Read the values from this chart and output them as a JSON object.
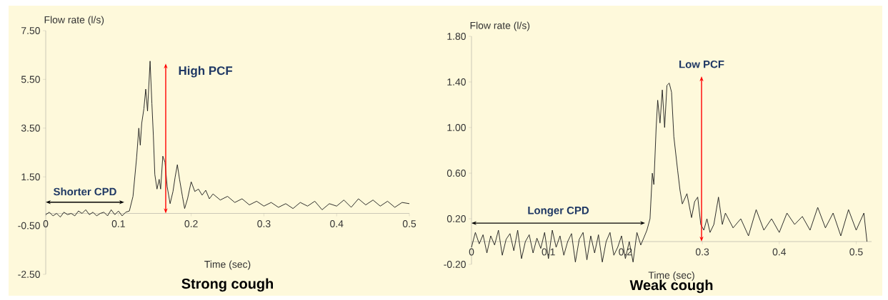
{
  "chart_data": [
    {
      "type": "line",
      "title": "Strong cough",
      "xlabel": "Time (sec)",
      "ylabel": "Flow rate (l/s)",
      "x": [
        0,
        0.005,
        0.01,
        0.015,
        0.02,
        0.025,
        0.03,
        0.035,
        0.04,
        0.045,
        0.05,
        0.055,
        0.06,
        0.065,
        0.07,
        0.075,
        0.08,
        0.085,
        0.09,
        0.095,
        0.1,
        0.105,
        0.11,
        0.115,
        0.12,
        0.125,
        0.128,
        0.13,
        0.132,
        0.135,
        0.1375,
        0.14,
        0.1435,
        0.146,
        0.148,
        0.15,
        0.153,
        0.156,
        0.158,
        0.161,
        0.164,
        0.167,
        0.171,
        0.175,
        0.178,
        0.181,
        0.184,
        0.188,
        0.191,
        0.195,
        0.2,
        0.205,
        0.21,
        0.215,
        0.22,
        0.225,
        0.23,
        0.24,
        0.25,
        0.26,
        0.27,
        0.28,
        0.29,
        0.3,
        0.31,
        0.32,
        0.33,
        0.34,
        0.35,
        0.36,
        0.37,
        0.38,
        0.39,
        0.4,
        0.41,
        0.42,
        0.43,
        0.44,
        0.45,
        0.46,
        0.47,
        0.48,
        0.49,
        0.5
      ],
      "series": [
        {
          "color": "#1a1a1a",
          "values": [
            -0.05,
            0.05,
            -0.1,
            0.0,
            -0.15,
            0.05,
            -0.05,
            0.0,
            -0.1,
            0.1,
            0.0,
            0.15,
            -0.05,
            0.05,
            -0.1,
            0.0,
            0.05,
            -0.1,
            0.15,
            -0.05,
            0.1,
            -0.1,
            0.05,
            0.1,
            0.7,
            2.3,
            3.5,
            2.8,
            3.7,
            4.3,
            5.1,
            4.2,
            6.25,
            4.5,
            3.2,
            1.6,
            1.0,
            1.4,
            1.0,
            2.35,
            2.1,
            1.1,
            0.4,
            0.9,
            1.5,
            2.0,
            1.4,
            0.7,
            0.2,
            0.6,
            1.3,
            0.9,
            1.0,
            0.75,
            0.95,
            0.6,
            0.8,
            0.55,
            0.7,
            0.45,
            0.6,
            0.35,
            0.5,
            0.3,
            0.45,
            0.25,
            0.4,
            0.2,
            0.45,
            0.3,
            0.5,
            0.15,
            0.4,
            0.3,
            0.55,
            0.25,
            0.6,
            0.35,
            0.55,
            0.3,
            0.5,
            0.25,
            0.45,
            0.4
          ]
        }
      ],
      "xlim": [
        0,
        0.5
      ],
      "ylim": [
        -2.5,
        7.5
      ],
      "xticks": [
        0,
        0.1,
        0.2,
        0.3,
        0.4,
        0.5
      ],
      "yticks": [
        {
          "value": -2.5,
          "label": "-2.50"
        },
        {
          "value": -0.5,
          "label": "-0.50"
        },
        {
          "value": 1.5,
          "label": "1.50"
        },
        {
          "value": 3.5,
          "label": "3.50"
        },
        {
          "value": 5.5,
          "label": "5.50"
        },
        {
          "value": 7.5,
          "label": "7.50"
        }
      ],
      "annotations": [
        "Shorter CPD",
        "High PCF"
      ]
    },
    {
      "type": "line",
      "title": "Weak cough",
      "xlabel": "Time (sec)",
      "ylabel": "Flow rate (l/s)",
      "x": [
        0,
        0.005,
        0.01,
        0.015,
        0.02,
        0.025,
        0.03,
        0.035,
        0.04,
        0.045,
        0.05,
        0.055,
        0.06,
        0.065,
        0.07,
        0.075,
        0.08,
        0.085,
        0.09,
        0.095,
        0.1,
        0.105,
        0.11,
        0.115,
        0.12,
        0.125,
        0.13,
        0.135,
        0.14,
        0.145,
        0.15,
        0.155,
        0.16,
        0.165,
        0.17,
        0.175,
        0.18,
        0.185,
        0.19,
        0.195,
        0.2,
        0.205,
        0.21,
        0.215,
        0.22,
        0.225,
        0.228,
        0.232,
        0.235,
        0.237,
        0.24,
        0.242,
        0.245,
        0.248,
        0.251,
        0.254,
        0.257,
        0.26,
        0.263,
        0.268,
        0.271,
        0.274,
        0.28,
        0.286,
        0.29,
        0.294,
        0.298,
        0.302,
        0.306,
        0.31,
        0.315,
        0.321,
        0.326,
        0.33,
        0.34,
        0.35,
        0.36,
        0.37,
        0.38,
        0.39,
        0.4,
        0.41,
        0.42,
        0.43,
        0.44,
        0.45,
        0.46,
        0.47,
        0.48,
        0.49,
        0.5,
        0.51,
        0.514
      ],
      "series": [
        {
          "color": "#1a1a1a",
          "values": [
            -0.05,
            0.08,
            -0.02,
            0.06,
            -0.1,
            0.05,
            -0.03,
            0.1,
            -0.12,
            0.02,
            0.07,
            -0.08,
            0.1,
            -0.15,
            0.0,
            0.06,
            -0.1,
            0.03,
            -0.06,
            0.08,
            -0.15,
            0.1,
            -0.05,
            0.05,
            -0.12,
            0.0,
            0.07,
            -0.18,
            0.02,
            0.08,
            -0.16,
            0.05,
            -0.1,
            0.06,
            -0.18,
            0.0,
            0.08,
            -0.12,
            -0.05,
            0.05,
            -0.15,
            0.0,
            -0.18,
            0.08,
            -0.03,
            0.05,
            0.1,
            0.2,
            0.6,
            0.5,
            1.0,
            1.24,
            1.04,
            1.33,
            1.0,
            1.37,
            1.39,
            1.31,
            0.92,
            0.62,
            0.45,
            0.33,
            0.42,
            0.21,
            0.35,
            0.39,
            0.15,
            0.1,
            0.2,
            0.08,
            0.15,
            0.39,
            0.15,
            0.25,
            0.12,
            0.2,
            0.05,
            0.28,
            0.1,
            0.2,
            0.08,
            0.25,
            0.15,
            0.22,
            0.1,
            0.3,
            0.12,
            0.25,
            0.05,
            0.28,
            0.1,
            0.25,
            0.0
          ]
        }
      ],
      "xlim": [
        0,
        0.52
      ],
      "ylim": [
        -0.2,
        1.8
      ],
      "xticks": [
        0,
        0.1,
        0.2,
        0.3,
        0.4,
        0.5
      ],
      "yticks": [
        {
          "value": -0.2,
          "label": "-0.20"
        },
        {
          "value": 0.2,
          "label": "0.20"
        },
        {
          "value": 0.6,
          "label": "0.60"
        },
        {
          "value": 1.0,
          "label": "1.00"
        },
        {
          "value": 1.4,
          "label": "1.40"
        },
        {
          "value": 1.8,
          "label": "1.80"
        }
      ],
      "annotations": [
        "Longer CPD",
        "Low PCF"
      ]
    }
  ]
}
